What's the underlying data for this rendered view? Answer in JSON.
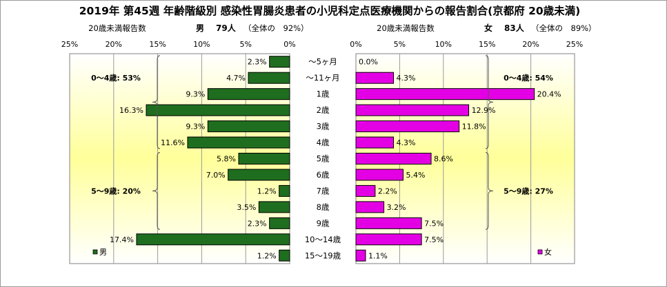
{
  "title": "2019年 第45週 年齢階級別 感染性胃腸炎患者の小児科定点医療機関からの報告割合(京都府 20歳未満)",
  "left_header": {
    "label": "20歳未満報告数",
    "sex": "男",
    "count": "79人",
    "share": "（全体の　92%）"
  },
  "right_header": {
    "label": "20歳未満報告数",
    "sex": "女",
    "count": "83人",
    "share": "（全体の　89%）"
  },
  "chart_data": [
    {
      "type": "bar",
      "orientation": "horizontal",
      "direction": "right-to-left",
      "xlim": [
        0,
        25
      ],
      "ticks": [
        "25%",
        "20%",
        "15%",
        "10%",
        "5%",
        "0%"
      ],
      "tick_values": [
        25,
        20,
        15,
        10,
        5,
        0
      ],
      "categories": [
        "～5ヶ月",
        "～11ヶ月",
        "1歳",
        "2歳",
        "3歳",
        "4歳",
        "5歳",
        "6歳",
        "7歳",
        "8歳",
        "9歳",
        "10～14歳",
        "15～19歳"
      ],
      "series": [
        {
          "name": "男",
          "values": [
            2.3,
            4.7,
            9.3,
            16.3,
            9.3,
            11.6,
            5.8,
            7.0,
            1.2,
            3.5,
            2.3,
            17.4,
            1.2
          ]
        }
      ],
      "labels": [
        "2.3%",
        "4.7%",
        "9.3%",
        "16.3%",
        "9.3%",
        "11.6%",
        "5.8%",
        "7.0%",
        "1.2%",
        "3.5%",
        "2.3%",
        "17.4%",
        "1.2%"
      ],
      "color": "#1f6e1f",
      "grid": true,
      "legend": "bottom-left",
      "annotations": [
        {
          "text": "0～4歳: 53%",
          "from": 0,
          "to": 5
        },
        {
          "text": "5～9歳: 20%",
          "from": 6,
          "to": 10
        }
      ]
    },
    {
      "type": "bar",
      "orientation": "horizontal",
      "direction": "left-to-right",
      "xlim": [
        0,
        25
      ],
      "ticks": [
        "0%",
        "5%",
        "10%",
        "15%",
        "20%",
        "25%"
      ],
      "tick_values": [
        0,
        5,
        10,
        15,
        20,
        25
      ],
      "categories": [
        "～5ヶ月",
        "～11ヶ月",
        "1歳",
        "2歳",
        "3歳",
        "4歳",
        "5歳",
        "6歳",
        "7歳",
        "8歳",
        "9歳",
        "10～14歳",
        "15～19歳"
      ],
      "series": [
        {
          "name": "女",
          "values": [
            0.0,
            4.3,
            20.4,
            12.9,
            11.8,
            4.3,
            8.6,
            5.4,
            2.2,
            3.2,
            7.5,
            7.5,
            1.1
          ]
        }
      ],
      "labels": [
        "0.0%",
        "4.3%",
        "20.4%",
        "12.9%",
        "11.8%",
        "4.3%",
        "8.6%",
        "5.4%",
        "2.2%",
        "3.2%",
        "7.5%",
        "7.5%",
        "1.1%"
      ],
      "color": "#e400e4",
      "grid": true,
      "legend": "bottom-right",
      "annotations": [
        {
          "text": "0～4歳: 54%",
          "from": 0,
          "to": 5
        },
        {
          "text": "5～9歳: 27%",
          "from": 6,
          "to": 10
        }
      ]
    }
  ]
}
